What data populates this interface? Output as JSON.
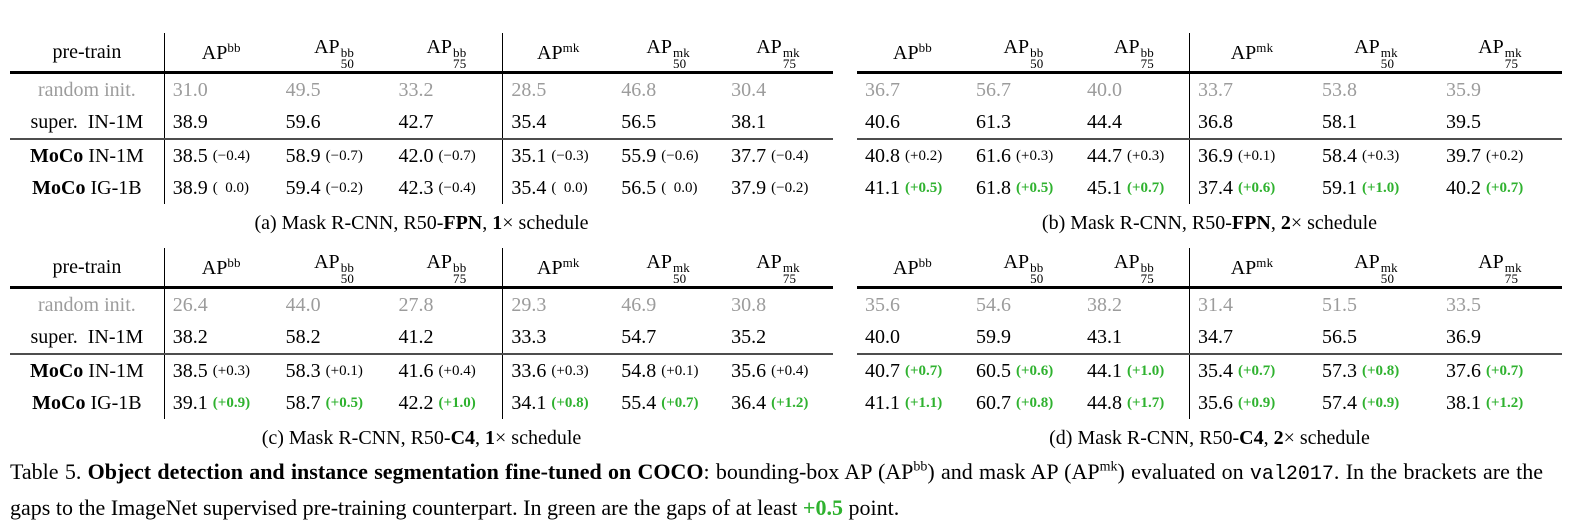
{
  "colors": {
    "green": "#2fb22f",
    "gray_text": "#9c9c9c"
  },
  "pretrain_header": "pre-train",
  "columns": [
    {
      "base": "AP",
      "sup": "bb",
      "sub": ""
    },
    {
      "base": "AP",
      "sup": "bb",
      "sub": "50"
    },
    {
      "base": "AP",
      "sup": "bb",
      "sub": "75"
    },
    {
      "base": "AP",
      "sup": "mk",
      "sub": ""
    },
    {
      "base": "AP",
      "sup": "mk",
      "sub": "50"
    },
    {
      "base": "AP",
      "sup": "mk",
      "sub": "75"
    }
  ],
  "chart_data": {
    "type": "table",
    "note": "Four sub-tables of COCO detection/segmentation AP results; see tables array"
  },
  "tables": [
    {
      "id": "a",
      "labels": true,
      "caption": [
        {
          "t": "(a) Mask R-CNN, R50-"
        },
        {
          "t": "FPN",
          "b": 1
        },
        {
          "t": ", "
        },
        {
          "t": "1",
          "b": 1
        },
        {
          "t": "× schedule"
        }
      ],
      "rows": [
        {
          "label": [
            {
              "t": "random init."
            }
          ],
          "gray": true,
          "cells": [
            {
              "v": "31.0"
            },
            {
              "v": "49.5"
            },
            {
              "v": "33.2"
            },
            {
              "v": "28.5"
            },
            {
              "v": "46.8"
            },
            {
              "v": "30.4"
            }
          ]
        },
        {
          "label": [
            {
              "t": "super.  IN-1M"
            }
          ],
          "cells": [
            {
              "v": "38.9"
            },
            {
              "v": "59.6"
            },
            {
              "v": "42.7"
            },
            {
              "v": "35.4"
            },
            {
              "v": "56.5"
            },
            {
              "v": "38.1"
            }
          ]
        },
        {
          "label": [
            {
              "t": "MoCo",
              "b": 1
            },
            {
              "t": " IN-1M"
            }
          ],
          "cells": [
            {
              "v": "38.5",
              "d": "(−0.4)"
            },
            {
              "v": "58.9",
              "d": "(−0.7)"
            },
            {
              "v": "42.0",
              "d": "(−0.7)"
            },
            {
              "v": "35.1",
              "d": "(−0.3)"
            },
            {
              "v": "55.9",
              "d": "(−0.6)"
            },
            {
              "v": "37.7",
              "d": "(−0.4)"
            }
          ]
        },
        {
          "label": [
            {
              "t": "MoCo",
              "b": 1
            },
            {
              "t": " IG-1B"
            }
          ],
          "cells": [
            {
              "v": "38.9",
              "d": "(  0.0)"
            },
            {
              "v": "59.4",
              "d": "(−0.2)"
            },
            {
              "v": "42.3",
              "d": "(−0.4)"
            },
            {
              "v": "35.4",
              "d": "(  0.0)"
            },
            {
              "v": "56.5",
              "d": "(  0.0)"
            },
            {
              "v": "37.9",
              "d": "(−0.2)"
            }
          ]
        }
      ]
    },
    {
      "id": "b",
      "labels": false,
      "caption": [
        {
          "t": "(b) Mask R-CNN, R50-"
        },
        {
          "t": "FPN",
          "b": 1
        },
        {
          "t": ", "
        },
        {
          "t": "2",
          "b": 1
        },
        {
          "t": "× schedule"
        }
      ],
      "rows": [
        {
          "label": [],
          "gray": true,
          "cells": [
            {
              "v": "36.7"
            },
            {
              "v": "56.7"
            },
            {
              "v": "40.0"
            },
            {
              "v": "33.7"
            },
            {
              "v": "53.8"
            },
            {
              "v": "35.9"
            }
          ]
        },
        {
          "label": [],
          "cells": [
            {
              "v": "40.6"
            },
            {
              "v": "61.3"
            },
            {
              "v": "44.4"
            },
            {
              "v": "36.8"
            },
            {
              "v": "58.1"
            },
            {
              "v": "39.5"
            }
          ]
        },
        {
          "label": [],
          "cells": [
            {
              "v": "40.8",
              "d": "(+0.2)"
            },
            {
              "v": "61.6",
              "d": "(+0.3)"
            },
            {
              "v": "44.7",
              "d": "(+0.3)"
            },
            {
              "v": "36.9",
              "d": "(+0.1)"
            },
            {
              "v": "58.4",
              "d": "(+0.3)"
            },
            {
              "v": "39.7",
              "d": "(+0.2)"
            }
          ]
        },
        {
          "label": [],
          "cells": [
            {
              "v": "41.1",
              "d": "(+0.5)",
              "g": 1
            },
            {
              "v": "61.8",
              "d": "(+0.5)",
              "g": 1
            },
            {
              "v": "45.1",
              "d": "(+0.7)",
              "g": 1
            },
            {
              "v": "37.4",
              "d": "(+0.6)",
              "g": 1
            },
            {
              "v": "59.1",
              "d": "(+1.0)",
              "g": 1
            },
            {
              "v": "40.2",
              "d": "(+0.7)",
              "g": 1
            }
          ]
        }
      ]
    },
    {
      "id": "c",
      "labels": true,
      "caption": [
        {
          "t": "(c) Mask R-CNN, R50-"
        },
        {
          "t": "C4",
          "b": 1
        },
        {
          "t": ", "
        },
        {
          "t": "1",
          "b": 1
        },
        {
          "t": "× schedule"
        }
      ],
      "rows": [
        {
          "label": [
            {
              "t": "random init."
            }
          ],
          "gray": true,
          "cells": [
            {
              "v": "26.4"
            },
            {
              "v": "44.0"
            },
            {
              "v": "27.8"
            },
            {
              "v": "29.3"
            },
            {
              "v": "46.9"
            },
            {
              "v": "30.8"
            }
          ]
        },
        {
          "label": [
            {
              "t": "super.  IN-1M"
            }
          ],
          "cells": [
            {
              "v": "38.2"
            },
            {
              "v": "58.2"
            },
            {
              "v": "41.2"
            },
            {
              "v": "33.3"
            },
            {
              "v": "54.7"
            },
            {
              "v": "35.2"
            }
          ]
        },
        {
          "label": [
            {
              "t": "MoCo",
              "b": 1
            },
            {
              "t": " IN-1M"
            }
          ],
          "cells": [
            {
              "v": "38.5",
              "d": "(+0.3)"
            },
            {
              "v": "58.3",
              "d": "(+0.1)"
            },
            {
              "v": "41.6",
              "d": "(+0.4)"
            },
            {
              "v": "33.6",
              "d": "(+0.3)"
            },
            {
              "v": "54.8",
              "d": "(+0.1)"
            },
            {
              "v": "35.6",
              "d": "(+0.4)"
            }
          ]
        },
        {
          "label": [
            {
              "t": "MoCo",
              "b": 1
            },
            {
              "t": " IG-1B"
            }
          ],
          "cells": [
            {
              "v": "39.1",
              "d": "(+0.9)",
              "g": 1
            },
            {
              "v": "58.7",
              "d": "(+0.5)",
              "g": 1
            },
            {
              "v": "42.2",
              "d": "(+1.0)",
              "g": 1
            },
            {
              "v": "34.1",
              "d": "(+0.8)",
              "g": 1
            },
            {
              "v": "55.4",
              "d": "(+0.7)",
              "g": 1
            },
            {
              "v": "36.4",
              "d": "(+1.2)",
              "g": 1
            }
          ]
        }
      ]
    },
    {
      "id": "d",
      "labels": false,
      "caption": [
        {
          "t": "(d) Mask R-CNN, R50-"
        },
        {
          "t": "C4",
          "b": 1
        },
        {
          "t": ", "
        },
        {
          "t": "2",
          "b": 1
        },
        {
          "t": "× schedule"
        }
      ],
      "rows": [
        {
          "label": [],
          "gray": true,
          "cells": [
            {
              "v": "35.6"
            },
            {
              "v": "54.6"
            },
            {
              "v": "38.2"
            },
            {
              "v": "31.4"
            },
            {
              "v": "51.5"
            },
            {
              "v": "33.5"
            }
          ]
        },
        {
          "label": [],
          "cells": [
            {
              "v": "40.0"
            },
            {
              "v": "59.9"
            },
            {
              "v": "43.1"
            },
            {
              "v": "34.7"
            },
            {
              "v": "56.5"
            },
            {
              "v": "36.9"
            }
          ]
        },
        {
          "label": [],
          "cells": [
            {
              "v": "40.7",
              "d": "(+0.7)",
              "g": 1
            },
            {
              "v": "60.5",
              "d": "(+0.6)",
              "g": 1
            },
            {
              "v": "44.1",
              "d": "(+1.0)",
              "g": 1
            },
            {
              "v": "35.4",
              "d": "(+0.7)",
              "g": 1
            },
            {
              "v": "57.3",
              "d": "(+0.8)",
              "g": 1
            },
            {
              "v": "37.6",
              "d": "(+0.7)",
              "g": 1
            }
          ]
        },
        {
          "label": [],
          "cells": [
            {
              "v": "41.1",
              "d": "(+1.1)",
              "g": 1
            },
            {
              "v": "60.7",
              "d": "(+0.8)",
              "g": 1
            },
            {
              "v": "44.8",
              "d": "(+1.7)",
              "g": 1
            },
            {
              "v": "35.6",
              "d": "(+0.9)",
              "g": 1
            },
            {
              "v": "57.4",
              "d": "(+0.9)",
              "g": 1
            },
            {
              "v": "38.1",
              "d": "(+1.2)",
              "g": 1
            }
          ]
        }
      ]
    }
  ],
  "caption": [
    {
      "t": "Table 5. "
    },
    {
      "t": "Object detection and instance segmentation fine-tuned on COCO",
      "b": 1
    },
    {
      "t": ": bounding-box AP (AP"
    },
    {
      "t": "bb",
      "sup": 1
    },
    {
      "t": ") and mask AP (AP"
    },
    {
      "t": "mk",
      "sup": 1
    },
    {
      "t": ") evaluated on "
    },
    {
      "t": "val2017",
      "mono": 1
    },
    {
      "t": ". In the brackets are the gaps to the ImageNet supervised pre-training counterpart. In green are the gaps of at least "
    },
    {
      "t": "+0.5",
      "green": 1
    },
    {
      "t": " point."
    }
  ]
}
